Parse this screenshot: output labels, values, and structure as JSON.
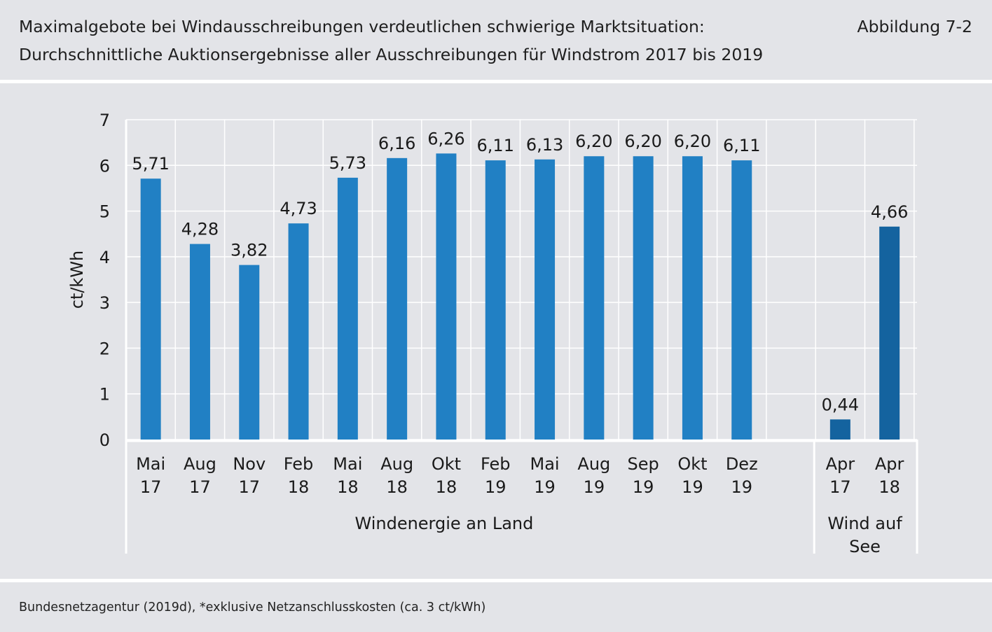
{
  "header": {
    "title_line1": "Maximalgebote bei Windausschreibungen verdeutlichen schwierige Marktsituation:",
    "title_line2": "Durchschnittliche Auktionsergebnisse aller Ausschreibungen für Windstrom 2017 bis 2019",
    "figure_label": "Abbildung 7-2"
  },
  "footer": {
    "source": "Bundesnetzagentur (2019d), *exklusive Netzanschlusskosten (ca. 3 ct/kWh)"
  },
  "chart_data": {
    "type": "bar",
    "ylabel": "ct/kWh",
    "ylim": [
      0,
      7
    ],
    "yticks": [
      0,
      1,
      2,
      3,
      4,
      5,
      6,
      7
    ],
    "grid": true,
    "colors": {
      "land": "#2180c4",
      "sea": "#14639f",
      "grid": "#ffffff"
    },
    "groups": [
      {
        "name": "Windenergie an Land",
        "bars": [
          {
            "label": [
              "Mai",
              "17"
            ],
            "value": 5.71,
            "value_label": "5,71"
          },
          {
            "label": [
              "Aug",
              "17"
            ],
            "value": 4.28,
            "value_label": "4,28"
          },
          {
            "label": [
              "Nov",
              "17"
            ],
            "value": 3.82,
            "value_label": "3,82"
          },
          {
            "label": [
              "Feb",
              "18"
            ],
            "value": 4.73,
            "value_label": "4,73"
          },
          {
            "label": [
              "Mai",
              "18"
            ],
            "value": 5.73,
            "value_label": "5,73"
          },
          {
            "label": [
              "Aug",
              "18"
            ],
            "value": 6.16,
            "value_label": "6,16"
          },
          {
            "label": [
              "Okt",
              "18"
            ],
            "value": 6.26,
            "value_label": "6,26"
          },
          {
            "label": [
              "Feb",
              "19"
            ],
            "value": 6.11,
            "value_label": "6,11"
          },
          {
            "label": [
              "Mai",
              "19"
            ],
            "value": 6.13,
            "value_label": "6,13"
          },
          {
            "label": [
              "Aug",
              "19"
            ],
            "value": 6.2,
            "value_label": "6,20"
          },
          {
            "label": [
              "Sep",
              "19"
            ],
            "value": 6.2,
            "value_label": "6,20"
          },
          {
            "label": [
              "Okt",
              "19"
            ],
            "value": 6.2,
            "value_label": "6,20"
          },
          {
            "label": [
              "Dez",
              "19"
            ],
            "value": 6.11,
            "value_label": "6,11"
          }
        ]
      },
      {
        "name": "Wind auf See",
        "bars": [
          {
            "label": [
              "Apr",
              "17"
            ],
            "value": 0.44,
            "value_label": "0,44"
          },
          {
            "label": [
              "Apr",
              "18"
            ],
            "value": 4.66,
            "value_label": "4,66"
          }
        ]
      }
    ]
  }
}
